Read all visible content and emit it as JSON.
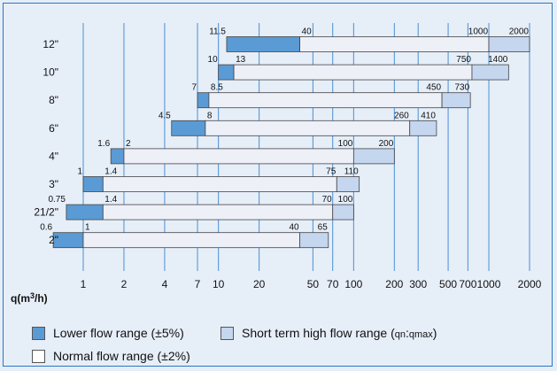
{
  "chart_data": {
    "type": "bar",
    "title": "",
    "xlabel": "q(m³/h)",
    "ylabel": "",
    "x_scale": "log",
    "xlim": [
      0.6,
      2000
    ],
    "x_ticks": [
      1,
      2,
      4,
      7,
      10,
      20,
      50,
      70,
      100,
      200,
      300,
      500,
      700,
      1000,
      2000
    ],
    "grid": "vertical",
    "legend_position": "bottom",
    "categories": [
      "12\"",
      "10\"",
      "8\"",
      "6\"",
      "4\"",
      "3\"",
      "21/2\"",
      "2\""
    ],
    "rows": [
      {
        "size": "12\"",
        "lower_start": 11.5,
        "lower_end": 40,
        "normal_end": 1000,
        "high_end": 2000
      },
      {
        "size": "10\"",
        "lower_start": 10,
        "lower_end": 13,
        "normal_end": 750,
        "high_end": 1400
      },
      {
        "size": "8\"",
        "lower_start": 7,
        "lower_end": 8.5,
        "normal_end": 450,
        "high_end": 730
      },
      {
        "size": "6\"",
        "lower_start": 4.5,
        "lower_end": 8,
        "normal_end": 260,
        "high_end": 410
      },
      {
        "size": "4\"",
        "lower_start": 1.6,
        "lower_end": 2,
        "normal_end": 100,
        "high_end": 200
      },
      {
        "size": "3\"",
        "lower_start": 1,
        "lower_end": 1.4,
        "normal_end": 75,
        "high_end": 110
      },
      {
        "size": "21/2\"",
        "lower_start": 0.75,
        "lower_end": 1.4,
        "normal_end": 70,
        "high_end": 100
      },
      {
        "size": "2\"",
        "lower_start": 0.6,
        "lower_end": 1,
        "normal_end": 40,
        "high_end": 65
      }
    ],
    "series": [
      {
        "name": "Lower flow range (±5%)",
        "color": "#5b9bd5"
      },
      {
        "name": "Normal flow range (±2%)",
        "color": "#eef0f8"
      },
      {
        "name": "Short term high flow range",
        "color": "#c5d6ef"
      }
    ],
    "colors": {
      "frame": "#2f76c1",
      "gridline": "#4a90d2",
      "background": "#e6eef8",
      "bar_border": "#444444"
    }
  },
  "legend": {
    "lower": "Lower flow range (±5%)",
    "normal": "Normal flow range (±2%)",
    "high_prefix": "Short term high flow range (",
    "high_sub1": "qn",
    "high_sep": ":",
    "high_sub2": "qmax",
    "high_suffix": ")"
  }
}
